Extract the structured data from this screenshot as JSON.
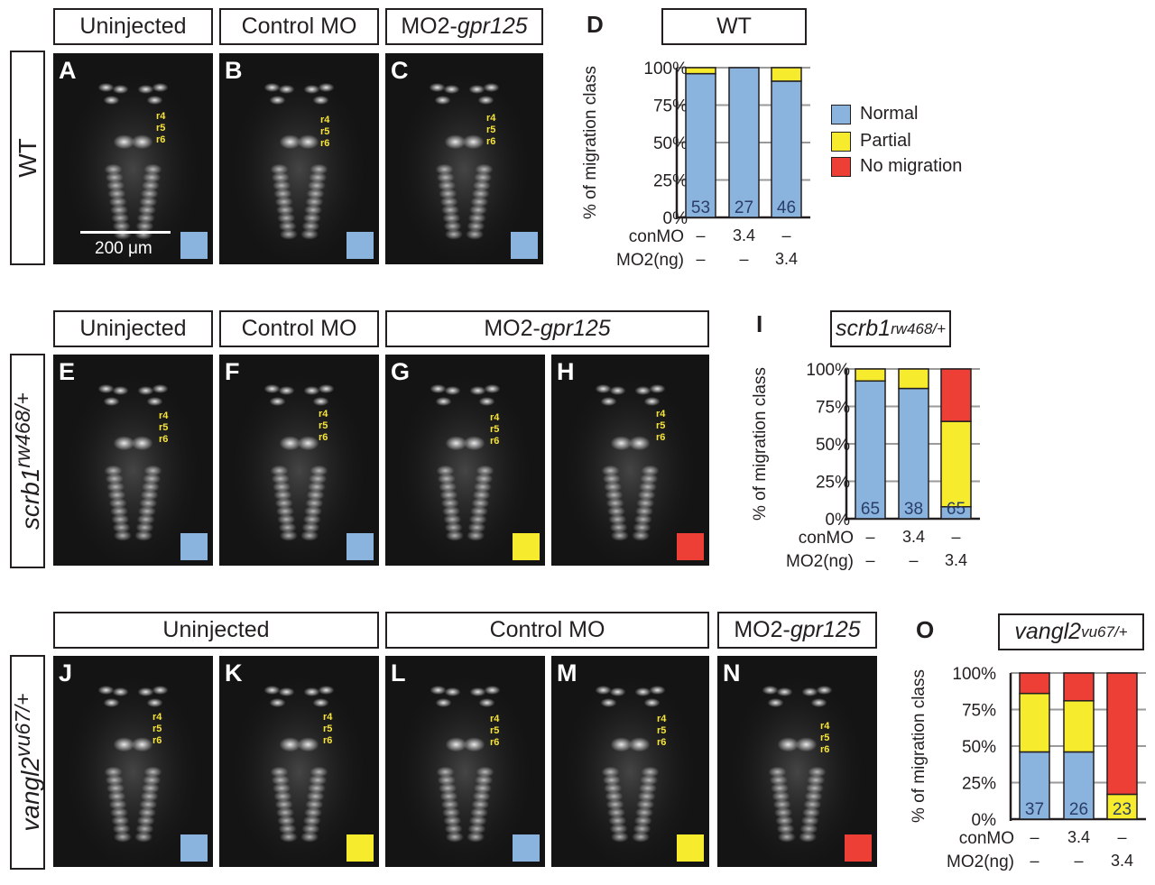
{
  "colors": {
    "normal": "#8ab4de",
    "partial": "#f6ec2d",
    "none": "#ed3f35",
    "text": "#231f20"
  },
  "rhombomeres": [
    "r4",
    "r5",
    "r6"
  ],
  "scale_label": "200 μm",
  "headers": {
    "a_uninjected": "Uninjected",
    "a_control": "Control MO",
    "a_mo2_prefix": "MO2-",
    "a_mo2_gene": "gpr125",
    "e_uninjected": "Uninjected",
    "e_control": "Control MO",
    "e_mo2_prefix": "MO2-",
    "e_mo2_gene": "gpr125",
    "j_uninjected": "Uninjected",
    "j_control": "Control MO",
    "j_mo2_prefix": "MO2-",
    "j_mo2_gene": "gpr125"
  },
  "rows": {
    "wt": {
      "main": "WT",
      "sup": ""
    },
    "scrb1": {
      "main": "scrb1",
      "sup": "rw468/+"
    },
    "vangl2": {
      "main": "vangl2",
      "sup": "vu67/+"
    }
  },
  "panels": [
    {
      "label": "A",
      "class": "normal"
    },
    {
      "label": "B",
      "class": "normal"
    },
    {
      "label": "C",
      "class": "normal"
    },
    {
      "label": "E",
      "class": "normal"
    },
    {
      "label": "F",
      "class": "normal"
    },
    {
      "label": "G",
      "class": "partial"
    },
    {
      "label": "H",
      "class": "none"
    },
    {
      "label": "J",
      "class": "normal"
    },
    {
      "label": "K",
      "class": "partial"
    },
    {
      "label": "L",
      "class": "normal"
    },
    {
      "label": "M",
      "class": "partial"
    },
    {
      "label": "N",
      "class": "none"
    }
  ],
  "legend": [
    {
      "label": "Normal",
      "color": "#8ab4de"
    },
    {
      "label": "Partial",
      "color": "#f6ec2d"
    },
    {
      "label": "No migration",
      "color": "#ed3f35"
    }
  ],
  "chart_data": [
    {
      "type": "bar",
      "panel_letter": "D",
      "title": "WT",
      "title_sup": "",
      "ylabel": "% of migration class",
      "yticks": [
        "0%",
        "25%",
        "50%",
        "75%",
        "100%"
      ],
      "ylim": [
        0,
        100
      ],
      "stacked": true,
      "row_labels": [
        "conMO",
        "MO2(ng)"
      ],
      "conMO": [
        "–",
        "3.4",
        "–"
      ],
      "MO2": [
        "–",
        "–",
        "3.4"
      ],
      "n": [
        "53",
        "27",
        "46"
      ],
      "series": [
        {
          "name": "Normal",
          "color": "#8ab4de",
          "values": [
            96,
            100,
            91
          ]
        },
        {
          "name": "Partial",
          "color": "#f6ec2d",
          "values": [
            4,
            0,
            9
          ]
        },
        {
          "name": "No migration",
          "color": "#ed3f35",
          "values": [
            0,
            0,
            0
          ]
        }
      ]
    },
    {
      "type": "bar",
      "panel_letter": "I",
      "title": "scrb1",
      "title_sup": "rw468/+",
      "ylabel": "% of migration class",
      "yticks": [
        "0%",
        "25%",
        "50%",
        "75%",
        "100%"
      ],
      "ylim": [
        0,
        100
      ],
      "stacked": true,
      "row_labels": [
        "conMO",
        "MO2(ng)"
      ],
      "conMO": [
        "–",
        "3.4",
        "–"
      ],
      "MO2": [
        "–",
        "–",
        "3.4"
      ],
      "n": [
        "65",
        "38",
        "65"
      ],
      "series": [
        {
          "name": "Normal",
          "color": "#8ab4de",
          "values": [
            92,
            87,
            8
          ]
        },
        {
          "name": "Partial",
          "color": "#f6ec2d",
          "values": [
            8,
            13,
            57
          ]
        },
        {
          "name": "No migration",
          "color": "#ed3f35",
          "values": [
            0,
            0,
            35
          ]
        }
      ]
    },
    {
      "type": "bar",
      "panel_letter": "O",
      "title": "vangl2",
      "title_sup": "vu67/+",
      "ylabel": "% of migration class",
      "yticks": [
        "0%",
        "25%",
        "50%",
        "75%",
        "100%"
      ],
      "ylim": [
        0,
        100
      ],
      "stacked": true,
      "row_labels": [
        "conMO",
        "MO2(ng)"
      ],
      "conMO": [
        "–",
        "3.4",
        "–"
      ],
      "MO2": [
        "–",
        "–",
        "3.4"
      ],
      "n": [
        "37",
        "26",
        "23"
      ],
      "series": [
        {
          "name": "Normal",
          "color": "#8ab4de",
          "values": [
            46,
            46,
            0
          ]
        },
        {
          "name": "Partial",
          "color": "#f6ec2d",
          "values": [
            40,
            35,
            17
          ]
        },
        {
          "name": "No migration",
          "color": "#ed3f35",
          "values": [
            14,
            19,
            83
          ]
        }
      ]
    }
  ]
}
